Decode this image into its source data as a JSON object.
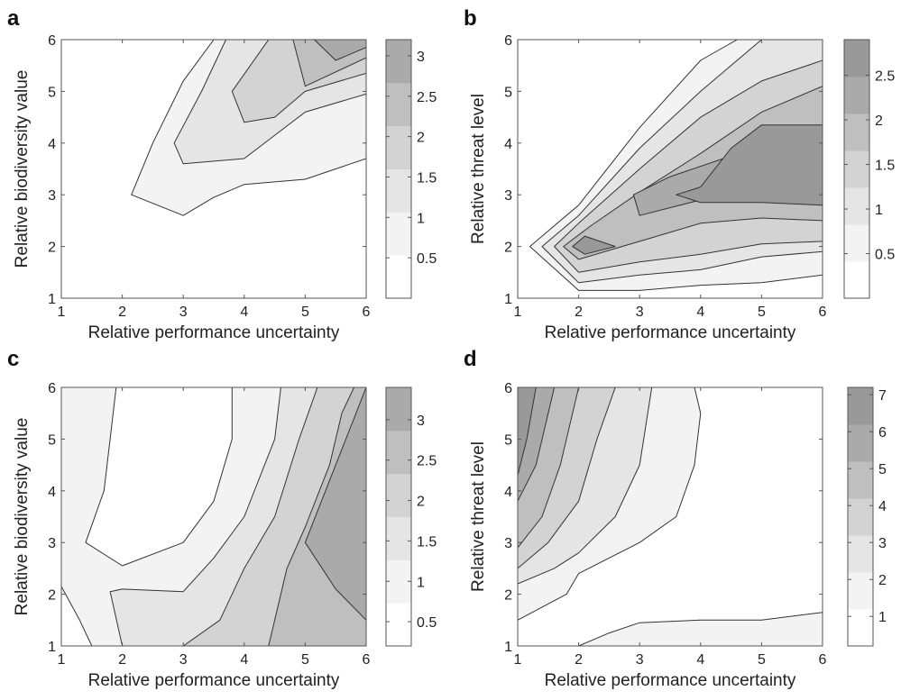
{
  "colors": {
    "levels": [
      "#ffffff",
      "#f3f3f3",
      "#e5e5e5",
      "#d3d3d3",
      "#bfbfbf",
      "#aaaaaa",
      "#999999"
    ],
    "frame": "#555555",
    "contour_line": "#333333"
  },
  "chart_data": [
    {
      "type": "contour",
      "panel": "a",
      "xlabel": "Relative performance uncertainty",
      "ylabel": "Relative biodiversity value",
      "xlim": [
        1,
        6
      ],
      "ylim": [
        1,
        6
      ],
      "xticks": [
        1,
        2,
        3,
        4,
        5,
        6
      ],
      "yticks": [
        1,
        2,
        3,
        4,
        5,
        6
      ],
      "colorbar": {
        "min": 0,
        "max": 3.2,
        "ticks": [
          0.5,
          1,
          1.5,
          2,
          2.5,
          3
        ],
        "tick_labels": [
          "0.5",
          "1",
          "1.5",
          "2",
          "2.5",
          "3"
        ]
      },
      "regions": [
        {
          "level": 1,
          "points": [
            [
              2.15,
              3
            ],
            [
              2.5,
              4
            ],
            [
              3,
              5.2
            ],
            [
              3.5,
              6
            ],
            [
              6,
              6
            ],
            [
              6,
              3.7
            ],
            [
              5,
              3.3
            ],
            [
              4,
              3.2
            ],
            [
              3.5,
              2.95
            ],
            [
              3,
              2.6
            ],
            [
              2.15,
              3
            ]
          ]
        },
        {
          "level": 2,
          "points": [
            [
              2.85,
              4
            ],
            [
              3.3,
              5
            ],
            [
              3.7,
              6
            ],
            [
              6,
              6
            ],
            [
              6,
              4.95
            ],
            [
              5,
              4.6
            ],
            [
              4,
              3.7
            ],
            [
              3,
              3.6
            ],
            [
              2.85,
              4
            ]
          ]
        },
        {
          "level": 3,
          "points": [
            [
              3.8,
              5
            ],
            [
              4.4,
              6
            ],
            [
              6,
              6
            ],
            [
              6,
              5.35
            ],
            [
              5,
              5
            ],
            [
              4.5,
              4.5
            ],
            [
              4,
              4.4
            ],
            [
              3.8,
              5
            ]
          ]
        },
        {
          "level": 4,
          "points": [
            [
              4.8,
              6
            ],
            [
              6,
              6
            ],
            [
              6,
              5.65
            ],
            [
              5,
              5.1
            ],
            [
              4.8,
              6
            ]
          ]
        },
        {
          "level": 5,
          "points": [
            [
              5.15,
              6
            ],
            [
              6,
              6
            ],
            [
              6,
              5.85
            ],
            [
              5.5,
              5.6
            ],
            [
              5.15,
              6
            ]
          ]
        }
      ]
    },
    {
      "type": "contour",
      "panel": "b",
      "xlabel": "Relative performance uncertainty",
      "ylabel": "Relative threat level",
      "xlim": [
        1,
        6
      ],
      "ylim": [
        1,
        6
      ],
      "xticks": [
        1,
        2,
        3,
        4,
        5,
        6
      ],
      "yticks": [
        1,
        2,
        3,
        4,
        5,
        6
      ],
      "colorbar": {
        "min": 0,
        "max": 2.9,
        "ticks": [
          0.5,
          1,
          1.5,
          2,
          2.5
        ],
        "tick_labels": [
          "0.5",
          "1",
          "1.5",
          "2",
          "2.5"
        ]
      },
      "regions": [
        {
          "level": 1,
          "points": [
            [
              1.2,
              2
            ],
            [
              2,
              2.8
            ],
            [
              3,
              4.3
            ],
            [
              4,
              5.6
            ],
            [
              4.6,
              6
            ],
            [
              6,
              6
            ],
            [
              6,
              1.45
            ],
            [
              5,
              1.3
            ],
            [
              4,
              1.25
            ],
            [
              3,
              1.15
            ],
            [
              2,
              1.15
            ],
            [
              1.2,
              2
            ]
          ]
        },
        {
          "level": 2,
          "points": [
            [
              1.4,
              2
            ],
            [
              2,
              2.6
            ],
            [
              3,
              3.9
            ],
            [
              4,
              5
            ],
            [
              5,
              6
            ],
            [
              6,
              6
            ],
            [
              6,
              1.9
            ],
            [
              5,
              1.8
            ],
            [
              4,
              1.55
            ],
            [
              3,
              1.45
            ],
            [
              2,
              1.3
            ],
            [
              1.4,
              2
            ]
          ]
        },
        {
          "level": 3,
          "points": [
            [
              1.6,
              2
            ],
            [
              2,
              2.45
            ],
            [
              3,
              3.5
            ],
            [
              4,
              4.5
            ],
            [
              5,
              5.2
            ],
            [
              6,
              5.6
            ],
            [
              6,
              2.1
            ],
            [
              5,
              2.05
            ],
            [
              4,
              1.85
            ],
            [
              3,
              1.7
            ],
            [
              2,
              1.5
            ],
            [
              1.6,
              2
            ]
          ]
        },
        {
          "level": 4,
          "points": [
            [
              1.75,
              2
            ],
            [
              2.2,
              2.4
            ],
            [
              3,
              3.05
            ],
            [
              4,
              3.8
            ],
            [
              5,
              4.6
            ],
            [
              6,
              5.1
            ],
            [
              6,
              2.5
            ],
            [
              5,
              2.55
            ],
            [
              4,
              2.45
            ],
            [
              3,
              2.1
            ],
            [
              2,
              1.75
            ],
            [
              1.75,
              2
            ]
          ]
        },
        {
          "level": 5,
          "points": [
            [
              2.9,
              3
            ],
            [
              3.5,
              3.35
            ],
            [
              4.5,
              3.75
            ],
            [
              5,
              3.85
            ],
            [
              6,
              3.8
            ],
            [
              6,
              2.8
            ],
            [
              5,
              2.9
            ],
            [
              4,
              2.9
            ],
            [
              3,
              2.6
            ],
            [
              2.9,
              3
            ]
          ]
        },
        {
          "level": 6,
          "points": [
            [
              3.6,
              3
            ],
            [
              4,
              3.15
            ],
            [
              4.5,
              3.9
            ],
            [
              5,
              4.35
            ],
            [
              6,
              4.35
            ],
            [
              6,
              2.8
            ],
            [
              5,
              2.85
            ],
            [
              4,
              2.85
            ],
            [
              3.6,
              3
            ]
          ]
        },
        {
          "level": 6,
          "points": [
            [
              1.9,
              2
            ],
            [
              2.1,
              2.2
            ],
            [
              2.6,
              2
            ],
            [
              2.1,
              1.85
            ],
            [
              1.9,
              2
            ]
          ]
        }
      ]
    },
    {
      "type": "contour",
      "panel": "c",
      "xlabel": "Relative performance uncertainty",
      "ylabel": "Relative biodiversity value",
      "xlim": [
        1,
        6
      ],
      "ylim": [
        1,
        6
      ],
      "xticks": [
        1,
        2,
        3,
        4,
        5,
        6
      ],
      "yticks": [
        1,
        2,
        3,
        4,
        5,
        6
      ],
      "colorbar": {
        "min": 0.2,
        "max": 3.4,
        "ticks": [
          0.5,
          1,
          1.5,
          2,
          2.5,
          3
        ],
        "tick_labels": [
          "0.5",
          "1",
          "1.5",
          "2",
          "2.5",
          "3"
        ]
      },
      "regions": [
        {
          "level": 1,
          "points": [
            [
              1,
              6
            ],
            [
              1.9,
              6
            ],
            [
              1.8,
              5
            ],
            [
              1.7,
              4
            ],
            [
              1.4,
              3
            ],
            [
              2,
              2.55
            ],
            [
              3,
              3
            ],
            [
              3.5,
              3.8
            ],
            [
              3.8,
              5
            ],
            [
              3.8,
              6
            ],
            [
              6,
              6
            ],
            [
              6,
              1
            ],
            [
              1.5,
              1
            ],
            [
              1.3,
              1.5
            ],
            [
              1,
              2.15
            ],
            [
              1,
              6
            ]
          ]
        },
        {
          "level": 2,
          "points": [
            [
              1.8,
              2.05
            ],
            [
              2,
              2.1
            ],
            [
              3,
              2.05
            ],
            [
              3.5,
              2.7
            ],
            [
              4,
              3.5
            ],
            [
              4.5,
              5
            ],
            [
              4.6,
              6
            ],
            [
              6,
              6
            ],
            [
              6,
              1
            ],
            [
              3,
              1
            ],
            [
              2,
              1
            ],
            [
              1.8,
              2.05
            ]
          ]
        },
        {
          "level": 3,
          "points": [
            [
              3,
              1
            ],
            [
              3.6,
              1.5
            ],
            [
              4,
              2.5
            ],
            [
              4.5,
              3.5
            ],
            [
              4.9,
              5
            ],
            [
              5.2,
              6
            ],
            [
              6,
              6
            ],
            [
              6,
              1
            ],
            [
              3,
              1
            ]
          ]
        },
        {
          "level": 4,
          "points": [
            [
              4.4,
              1
            ],
            [
              4.5,
              1.5
            ],
            [
              4.7,
              2.5
            ],
            [
              5,
              3.3
            ],
            [
              5.4,
              4.5
            ],
            [
              5.6,
              5.5
            ],
            [
              5.8,
              6
            ],
            [
              6,
              6
            ],
            [
              6,
              1
            ],
            [
              4.4,
              1
            ]
          ]
        },
        {
          "level": 5,
          "points": [
            [
              6,
              1.5
            ],
            [
              5.5,
              2.1
            ],
            [
              5,
              3
            ],
            [
              5.5,
              4.5
            ],
            [
              6,
              6
            ],
            [
              6,
              1.5
            ]
          ]
        }
      ]
    },
    {
      "type": "contour",
      "panel": "d",
      "xlabel": "Relative performance uncertainty",
      "ylabel": "Relative threat level",
      "xlim": [
        1,
        6
      ],
      "ylim": [
        1,
        6
      ],
      "xticks": [
        1,
        2,
        3,
        4,
        5,
        6
      ],
      "yticks": [
        1,
        2,
        3,
        4,
        5,
        6
      ],
      "colorbar": {
        "min": 0.2,
        "max": 7.2,
        "ticks": [
          1,
          2,
          3,
          4,
          5,
          6,
          7
        ],
        "tick_labels": [
          "1",
          "2",
          "3",
          "4",
          "5",
          "6",
          "7"
        ]
      },
      "regions": [
        {
          "level": 1,
          "points": [
            [
              1,
              1.5
            ],
            [
              1.8,
              2
            ],
            [
              2,
              2.4
            ],
            [
              3,
              3
            ],
            [
              3.6,
              3.5
            ],
            [
              3.9,
              4.5
            ],
            [
              4,
              5.5
            ],
            [
              3.9,
              6
            ],
            [
              1,
              6
            ],
            [
              1,
              1.5
            ]
          ]
        },
        {
          "level": 1,
          "points": [
            [
              2,
              1
            ],
            [
              2.5,
              1.25
            ],
            [
              3,
              1.45
            ],
            [
              4,
              1.5
            ],
            [
              5,
              1.5
            ],
            [
              6,
              1.65
            ],
            [
              6,
              1
            ],
            [
              2,
              1
            ]
          ]
        },
        {
          "level": 2,
          "points": [
            [
              1,
              2.2
            ],
            [
              1.6,
              2.5
            ],
            [
              2,
              2.8
            ],
            [
              2.6,
              3.5
            ],
            [
              3,
              4.5
            ],
            [
              3.2,
              6
            ],
            [
              1,
              6
            ],
            [
              1,
              2.2
            ]
          ]
        },
        {
          "level": 3,
          "points": [
            [
              1,
              2.5
            ],
            [
              1.5,
              3
            ],
            [
              2,
              3.8
            ],
            [
              2.3,
              5
            ],
            [
              2.6,
              6
            ],
            [
              1,
              6
            ],
            [
              1,
              2.5
            ]
          ]
        },
        {
          "level": 4,
          "points": [
            [
              1,
              2.9
            ],
            [
              1.4,
              3.5
            ],
            [
              1.7,
              4.5
            ],
            [
              2,
              6
            ],
            [
              1,
              6
            ],
            [
              1,
              2.9
            ]
          ]
        },
        {
          "level": 5,
          "points": [
            [
              1,
              3.8
            ],
            [
              1.3,
              4.5
            ],
            [
              1.5,
              5.5
            ],
            [
              1.6,
              6
            ],
            [
              1,
              6
            ],
            [
              1,
              3.8
            ]
          ]
        },
        {
          "level": 6,
          "points": [
            [
              1,
              4.3
            ],
            [
              1.15,
              5
            ],
            [
              1.3,
              6
            ],
            [
              1,
              6
            ],
            [
              1,
              4.3
            ]
          ]
        }
      ]
    }
  ]
}
